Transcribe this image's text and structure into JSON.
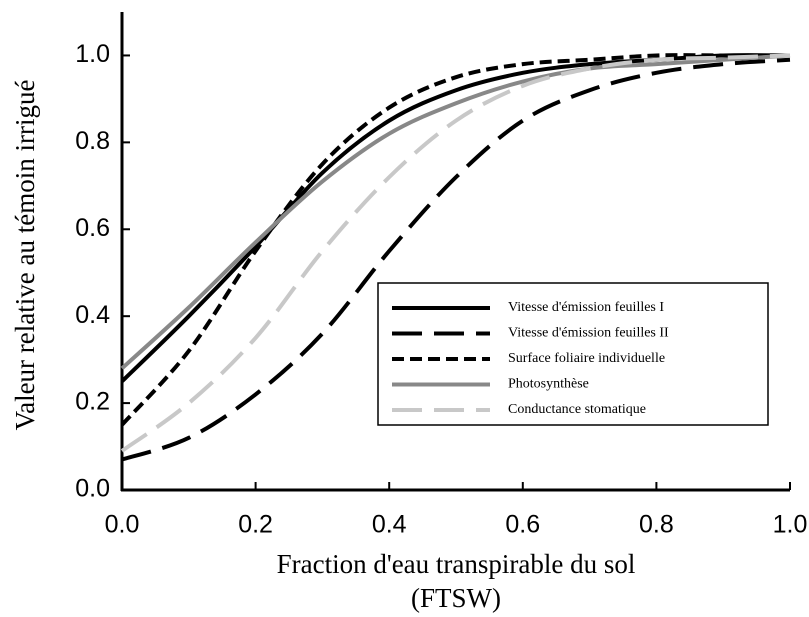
{
  "chart_data": {
    "type": "line",
    "ylabel": "Valeur relative au témoin irrigué",
    "xlabel": [
      "Fraction d'eau transpirable du sol",
      "(FTSW)"
    ],
    "x": [
      0,
      0.1,
      0.2,
      0.3,
      0.4,
      0.5,
      0.6,
      0.7,
      0.8,
      0.9,
      1.0
    ],
    "xlim": [
      0,
      1
    ],
    "xticks": [
      {
        "value": 0,
        "label": "0.0"
      },
      0.2,
      0.4,
      0.6,
      0.8,
      {
        "value": 1,
        "label": "1.0"
      }
    ],
    "ylim": [
      0,
      1.1
    ],
    "yticks": [
      {
        "value": 0,
        "label": "0.0"
      },
      0.2,
      0.4,
      0.6,
      0.8,
      {
        "value": 1,
        "label": "1.0"
      }
    ],
    "grid": false,
    "legend": "lower right",
    "series": [
      {
        "name": "Vitesse d'émission feuilles I",
        "color": "#000000",
        "linestyle": "solid",
        "values": [
          0.25,
          0.4,
          0.56,
          0.73,
          0.85,
          0.92,
          0.96,
          0.98,
          0.99,
          1.0,
          1.0
        ]
      },
      {
        "name": "Vitesse d'émission feuilles II",
        "color": "#000000",
        "linestyle": "long-dash",
        "values": [
          0.07,
          0.12,
          0.22,
          0.36,
          0.55,
          0.72,
          0.85,
          0.92,
          0.96,
          0.98,
          0.99
        ]
      },
      {
        "name": "Surface foliaire individuelle",
        "color": "#000000",
        "linestyle": "dash",
        "values": [
          0.15,
          0.32,
          0.55,
          0.75,
          0.88,
          0.95,
          0.98,
          0.99,
          1.0,
          1.0,
          1.0
        ]
      },
      {
        "name": "Photosynthèse",
        "color": "#888888",
        "linestyle": "solid",
        "values": [
          0.28,
          0.42,
          0.57,
          0.71,
          0.82,
          0.89,
          0.94,
          0.97,
          0.98,
          0.99,
          1.0
        ]
      },
      {
        "name": "Conductance stomatique",
        "color": "#c8c8c8",
        "linestyle": "long-dash",
        "values": [
          0.09,
          0.2,
          0.35,
          0.55,
          0.72,
          0.85,
          0.93,
          0.97,
          0.99,
          0.995,
          1.0
        ]
      }
    ]
  }
}
